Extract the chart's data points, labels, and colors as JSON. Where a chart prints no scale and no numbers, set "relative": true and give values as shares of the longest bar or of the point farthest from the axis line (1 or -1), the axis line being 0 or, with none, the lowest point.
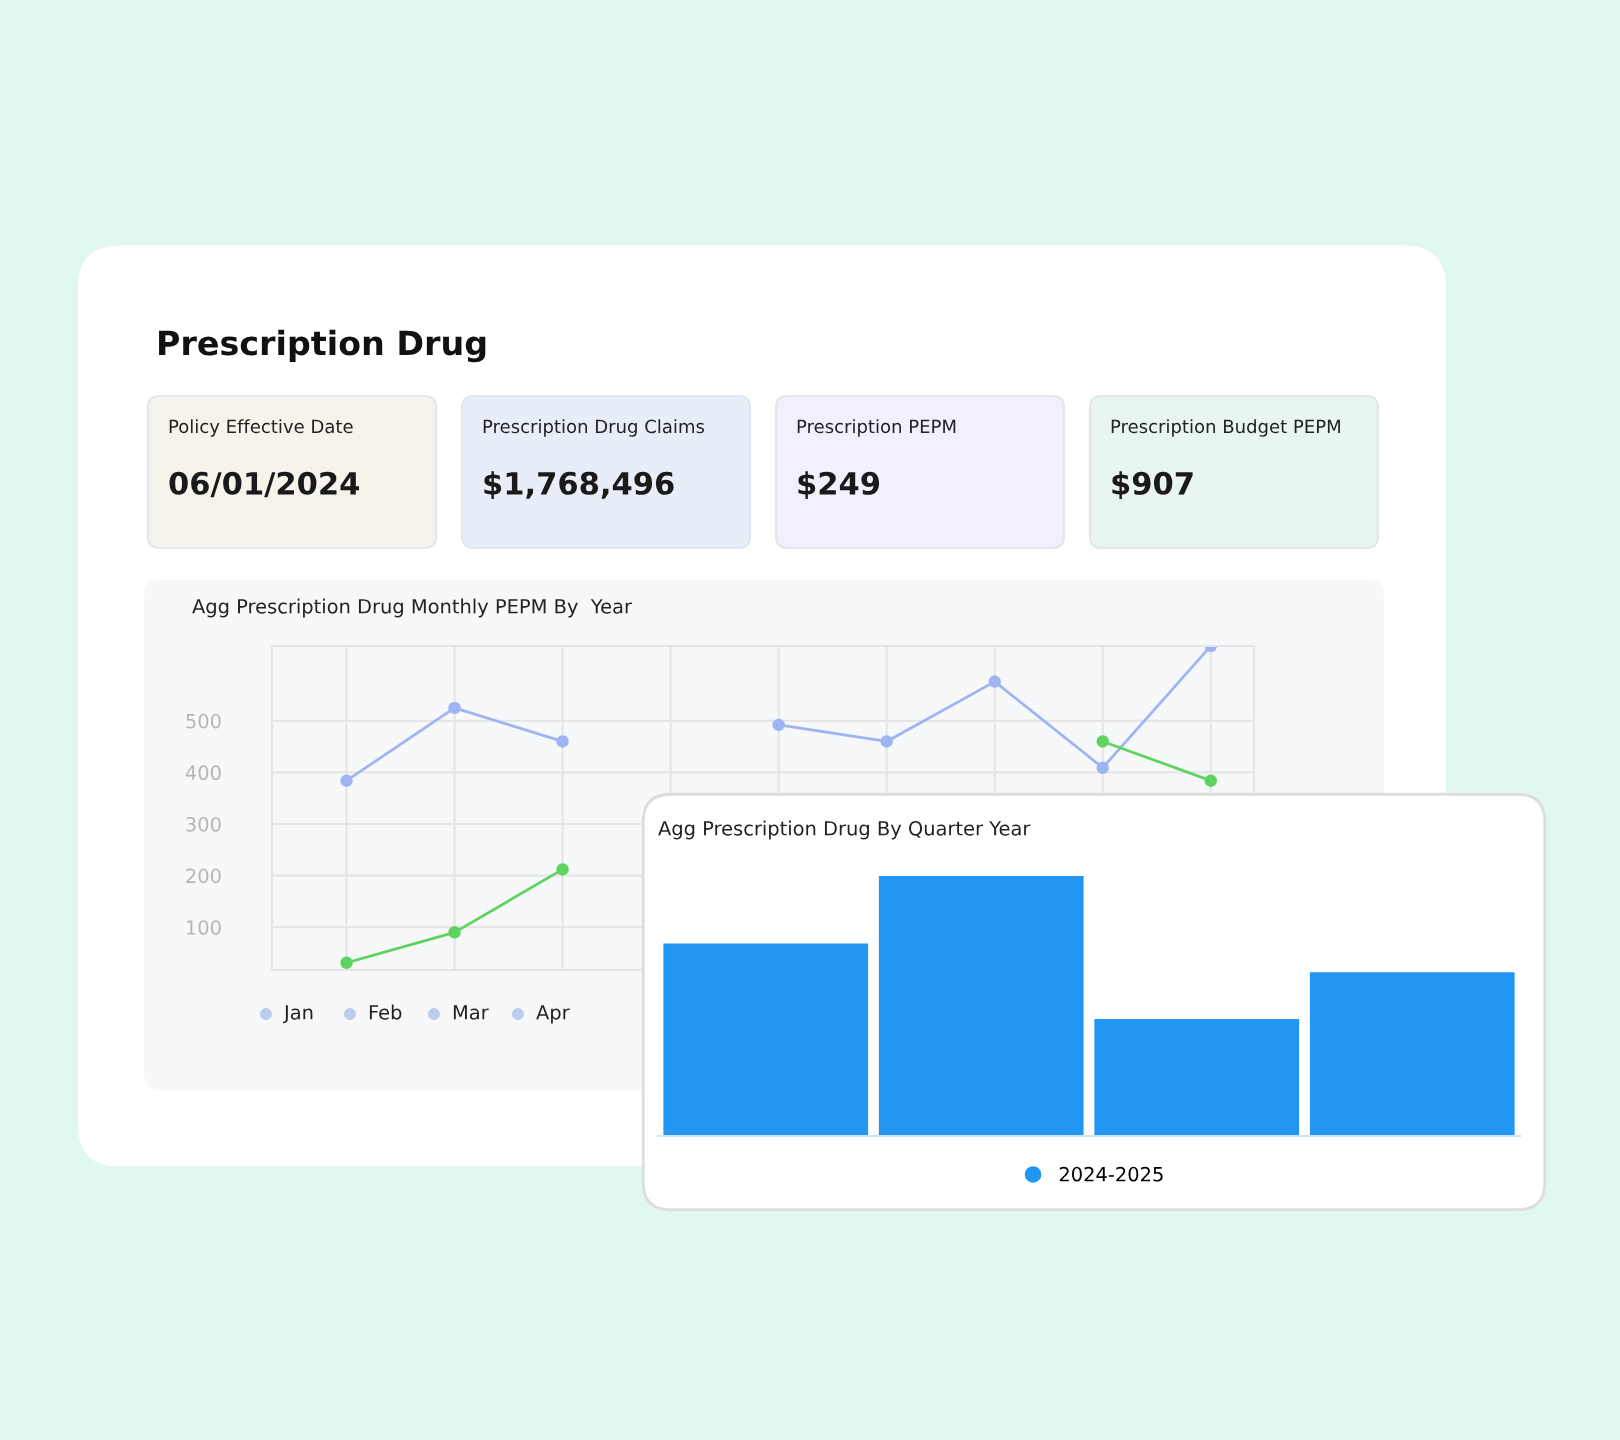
{
  "chart_data": [
    {
      "type": "other",
      "title": "Prescription Drug",
      "annotations": [
        "Policy Effective Date",
        "06/01/2024",
        "Prescription Drug Claims",
        "$1,768,496",
        "Prescription PEPM",
        "$249",
        "Prescription Budget PEPM",
        "$907"
      ]
    },
    {
      "type": "line",
      "title": "Agg Prescription Drug Monthly PEPM By  Year",
      "categories": [
        null,
        null,
        null,
        null,
        null,
        null,
        null,
        null,
        null
      ],
      "series": [
        {
          "color": "#9fb4f2",
          "values": [
            384,
            525,
            460,
            null,
            492,
            460,
            576,
            409,
            645
          ]
        },
        {
          "color": "#5fd35f",
          "values": [
            31,
            90,
            212,
            null,
            null,
            null,
            null,
            460,
            384
          ]
        }
      ],
      "ylim": [
        17,
        645
      ],
      "yticks": [
        100,
        200,
        300,
        400,
        500
      ],
      "grid": true,
      "marker": "circle",
      "annotations": [
        "Jan",
        "Feb",
        "Mar",
        "Apr"
      ]
    },
    {
      "type": "bar",
      "title": "Agg Prescription Drug By Quarter Year",
      "relative": true,
      "categories": [
        null,
        null,
        null,
        null
      ],
      "series": [
        {
          "name": "2024-2025",
          "color": "#2196f3",
          "values": [
            0.74,
            1,
            0.45,
            0.63
          ]
        }
      ],
      "legend": "bottom"
    }
  ]
}
